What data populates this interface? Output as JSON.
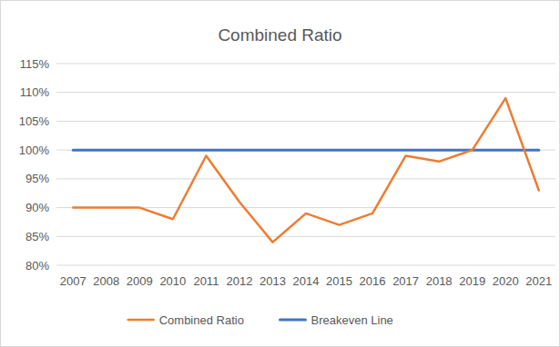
{
  "chart_data": {
    "type": "line",
    "title": "Combined Ratio",
    "categories": [
      "2007",
      "2008",
      "2009",
      "2010",
      "2011",
      "2012",
      "2013",
      "2014",
      "2015",
      "2016",
      "2017",
      "2018",
      "2019",
      "2020",
      "2021"
    ],
    "series": [
      {
        "name": "Combined Ratio",
        "color": "#ed7d31",
        "values": [
          90,
          90,
          90,
          88,
          99,
          91,
          84,
          89,
          87,
          89,
          99,
          98,
          100,
          109,
          93
        ]
      },
      {
        "name": "Breakeven Line",
        "color": "#4472c4",
        "values": [
          100,
          100,
          100,
          100,
          100,
          100,
          100,
          100,
          100,
          100,
          100,
          100,
          100,
          100,
          100
        ]
      }
    ],
    "ylim": [
      80,
      115
    ],
    "yticks": [
      {
        "value": 80,
        "label": "80%"
      },
      {
        "value": 85,
        "label": "85%"
      },
      {
        "value": 90,
        "label": "90%"
      },
      {
        "value": 95,
        "label": "95%"
      },
      {
        "value": 100,
        "label": "100%"
      },
      {
        "value": 105,
        "label": "105%"
      },
      {
        "value": 110,
        "label": "110%"
      },
      {
        "value": 115,
        "label": "115%"
      }
    ],
    "grid": true,
    "legend": "bottom"
  }
}
